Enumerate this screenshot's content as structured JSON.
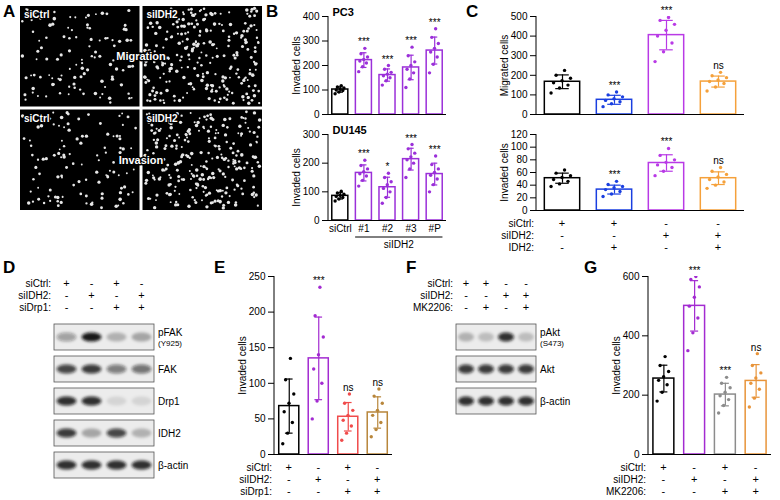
{
  "images": {
    "panel": "A",
    "rows": [
      {
        "label": "Migration",
        "columns": [
          "siCtrl",
          "siIDH2"
        ]
      },
      {
        "label": "Invasion",
        "columns": [
          "siCtrl",
          "siIDH2"
        ]
      }
    ]
  },
  "chart_data": [
    {
      "panel": "B",
      "type": "bar",
      "title": "PC3",
      "y_label": "Invaded cells",
      "categories": [
        "siCtrl",
        "#1",
        "#2",
        "#3",
        "#P"
      ],
      "tick_labels": "y",
      "values": [
        102,
        222,
        161,
        192,
        261
      ],
      "errors": [
        11,
        30,
        25,
        50,
        55
      ],
      "points": [
        [
          85,
          92,
          98,
          100,
          104,
          108,
          112,
          118
        ],
        [
          175,
          195,
          210,
          218,
          225,
          235,
          248,
          270
        ],
        [
          120,
          138,
          150,
          158,
          165,
          172,
          185,
          200
        ],
        [
          110,
          145,
          170,
          185,
          200,
          215,
          240,
          275
        ],
        [
          170,
          205,
          235,
          255,
          270,
          290,
          315,
          350
        ]
      ],
      "annotations": [
        null,
        "***",
        "***",
        "***",
        "***"
      ],
      "colors": [
        "#000000",
        "#9b30d9",
        "#9b30d9",
        "#9b30d9",
        "#9b30d9"
      ],
      "ylim": [
        0,
        400
      ],
      "yticks": [
        0,
        100,
        200,
        300,
        400
      ]
    },
    {
      "type": "bar",
      "title": "DU145",
      "y_label": "Invaded cells",
      "categories": [
        "siCtrl",
        "#1",
        "#2",
        "#3",
        "#P"
      ],
      "group_label": "siIDH2",
      "values": [
        86,
        166,
        116,
        214,
        162
      ],
      "errors": [
        11,
        28,
        35,
        38,
        38
      ],
      "points": [
        [
          68,
          75,
          80,
          84,
          88,
          92,
          96,
          102
        ],
        [
          120,
          140,
          155,
          163,
          170,
          180,
          192,
          210
        ],
        [
          60,
          80,
          100,
          112,
          125,
          135,
          150,
          165
        ],
        [
          150,
          180,
          200,
          212,
          222,
          235,
          250,
          265
        ],
        [
          100,
          125,
          145,
          158,
          168,
          180,
          195,
          225
        ]
      ],
      "annotations": [
        null,
        "***",
        "*",
        "***",
        "***"
      ],
      "colors": [
        "#000000",
        "#9b30d9",
        "#9b30d9",
        "#9b30d9",
        "#9b30d9"
      ],
      "ylim": [
        0,
        300
      ],
      "yticks": [
        0,
        100,
        200,
        300
      ]
    },
    {
      "panel": "C",
      "type": "bar",
      "y_label": "Migrated cells",
      "categories": [
        null,
        null,
        null,
        null
      ],
      "tick_labels": "y",
      "values": [
        167,
        75,
        405,
        168
      ],
      "errors": [
        35,
        23,
        75,
        28
      ],
      "points": [
        [
          110,
          135,
          150,
          162,
          172,
          185,
          200,
          225
        ],
        [
          40,
          55,
          65,
          72,
          80,
          90,
          100,
          115
        ],
        [
          270,
          320,
          365,
          400,
          430,
          460,
          480,
          495
        ],
        [
          120,
          140,
          158,
          168,
          176,
          188,
          198,
          215
        ]
      ],
      "annotations": [
        null,
        "***",
        "***",
        "ns"
      ],
      "colors": [
        "#000000",
        "#1a3fe0",
        "#b93ae6",
        "#f5a13b"
      ],
      "ylim": [
        0,
        500
      ],
      "yticks": [
        0,
        100,
        200,
        300,
        400,
        500
      ]
    },
    {
      "type": "bar",
      "y_label": "Invaded cells",
      "categories": [
        null,
        null,
        null,
        null
      ],
      "tick_labels": "y",
      "values": [
        51,
        33,
        75,
        51
      ],
      "errors": [
        8,
        7,
        13,
        10
      ],
      "points": [
        [
          38,
          42,
          46,
          49,
          52,
          55,
          59,
          64
        ],
        [
          22,
          26,
          30,
          33,
          36,
          38,
          41,
          46
        ],
        [
          55,
          62,
          68,
          72,
          76,
          80,
          87,
          98
        ],
        [
          35,
          40,
          45,
          49,
          53,
          57,
          62,
          68
        ]
      ],
      "annotations": [
        null,
        "***",
        "***",
        "ns"
      ],
      "colors": [
        "#000000",
        "#1a3fe0",
        "#b93ae6",
        "#f5a13b"
      ],
      "ylim": [
        0,
        120
      ],
      "yticks": [
        0,
        20,
        40,
        60,
        80,
        100,
        120
      ],
      "conditions": [
        {
          "label": "siCtrl:",
          "values": [
            "+",
            "+",
            "-",
            "-"
          ]
        },
        {
          "label": "siIDH2:",
          "values": [
            "-",
            "-",
            "+",
            "+"
          ]
        },
        {
          "label": "IDH2:",
          "values": [
            "-",
            "+",
            "-",
            "+"
          ]
        }
      ]
    },
    {
      "panel": "E",
      "type": "bar",
      "y_label": "Invaded cells",
      "categories": [
        null,
        null,
        null,
        null
      ],
      "tick_labels": "y",
      "values": [
        68,
        135,
        53,
        59
      ],
      "errors": [
        38,
        58,
        20,
        22
      ],
      "points": [
        [
          15,
          30,
          45,
          60,
          72,
          85,
          105,
          135
        ],
        [
          50,
          75,
          100,
          120,
          140,
          165,
          195,
          235
        ],
        [
          20,
          30,
          40,
          48,
          55,
          62,
          72,
          85
        ],
        [
          25,
          35,
          45,
          55,
          62,
          72,
          82,
          92
        ]
      ],
      "annotations": [
        null,
        "***",
        "ns",
        "ns"
      ],
      "colors": [
        "#000000",
        "#a32bd1",
        "#f04b4b",
        "#b8863b"
      ],
      "ylim": [
        0,
        250
      ],
      "yticks": [
        0,
        50,
        100,
        150,
        200,
        250
      ],
      "conditions": [
        {
          "label": "siCtrl:",
          "values": [
            "+",
            "-",
            "+",
            "-"
          ]
        },
        {
          "label": "siIDH2:",
          "values": [
            "-",
            "+",
            "-",
            "+"
          ]
        },
        {
          "label": "siDrp1:",
          "values": [
            "-",
            "-",
            "+",
            "+"
          ]
        }
      ]
    },
    {
      "panel": "G",
      "type": "bar",
      "y_label": "Invaded cells",
      "categories": [
        null,
        null,
        null,
        null
      ],
      "tick_labels": "y",
      "values": [
        256,
        501,
        202,
        248
      ],
      "errors": [
        45,
        85,
        38,
        55
      ],
      "points": [
        [
          180,
          210,
          235,
          250,
          262,
          280,
          300,
          330
        ],
        [
          350,
          410,
          460,
          500,
          530,
          565,
          590,
          600
        ],
        [
          140,
          165,
          185,
          198,
          210,
          225,
          240,
          260
        ],
        [
          160,
          190,
          220,
          240,
          258,
          275,
          300,
          340
        ]
      ],
      "annotations": [
        null,
        "***",
        "***",
        "ns"
      ],
      "colors": [
        "#000000",
        "#a32bd1",
        "#8c8c8c",
        "#e8943a"
      ],
      "ylim": [
        0,
        600
      ],
      "yticks": [
        0,
        200,
        400,
        600
      ],
      "conditions": [
        {
          "label": "siCtrl:",
          "values": [
            "+",
            "-",
            "+",
            "-"
          ]
        },
        {
          "label": "siIDH2:",
          "values": [
            "-",
            "+",
            "-",
            "+"
          ]
        },
        {
          "label": "MK2206:",
          "values": [
            "-",
            "-",
            "+",
            "+"
          ]
        }
      ]
    }
  ],
  "blots": [
    {
      "panel": "D",
      "conditions": [
        {
          "label": "siCtrl:",
          "values": [
            "+",
            "-",
            "+",
            "-"
          ]
        },
        {
          "label": "siIDH2:",
          "values": [
            "-",
            "+",
            "-",
            "+"
          ]
        },
        {
          "label": "siDrp1:",
          "values": [
            "-",
            "-",
            "+",
            "+"
          ]
        }
      ],
      "bands": [
        {
          "label": "pFAK",
          "sublabel": "(Y925)",
          "intensity": [
            0.35,
            0.95,
            0.25,
            0.3
          ]
        },
        {
          "label": "FAK",
          "intensity": [
            0.75,
            0.8,
            0.5,
            0.55
          ]
        },
        {
          "label": "Drp1",
          "intensity": [
            0.85,
            0.85,
            0.1,
            0.1
          ]
        },
        {
          "label": "IDH2",
          "intensity": [
            0.8,
            0.3,
            0.75,
            0.25
          ]
        },
        {
          "label": "β-actin",
          "intensity": [
            0.85,
            0.85,
            0.85,
            0.85
          ]
        }
      ]
    },
    {
      "panel": "F",
      "conditions": [
        {
          "label": "siCtrl:",
          "values": [
            "+",
            "+",
            "-",
            "-"
          ]
        },
        {
          "label": "siIDH2:",
          "values": [
            "-",
            "-",
            "+",
            "+"
          ]
        },
        {
          "label": "MK2206:",
          "values": [
            "-",
            "+",
            "-",
            "+"
          ]
        }
      ],
      "bands": [
        {
          "label": "pAkt",
          "sublabel": "(S473)",
          "intensity": [
            0.25,
            0.2,
            0.85,
            0.2
          ]
        },
        {
          "label": "Akt",
          "intensity": [
            0.8,
            0.8,
            0.8,
            0.8
          ]
        },
        {
          "label": "β-actin",
          "intensity": [
            0.85,
            0.85,
            0.85,
            0.85
          ]
        }
      ]
    }
  ]
}
